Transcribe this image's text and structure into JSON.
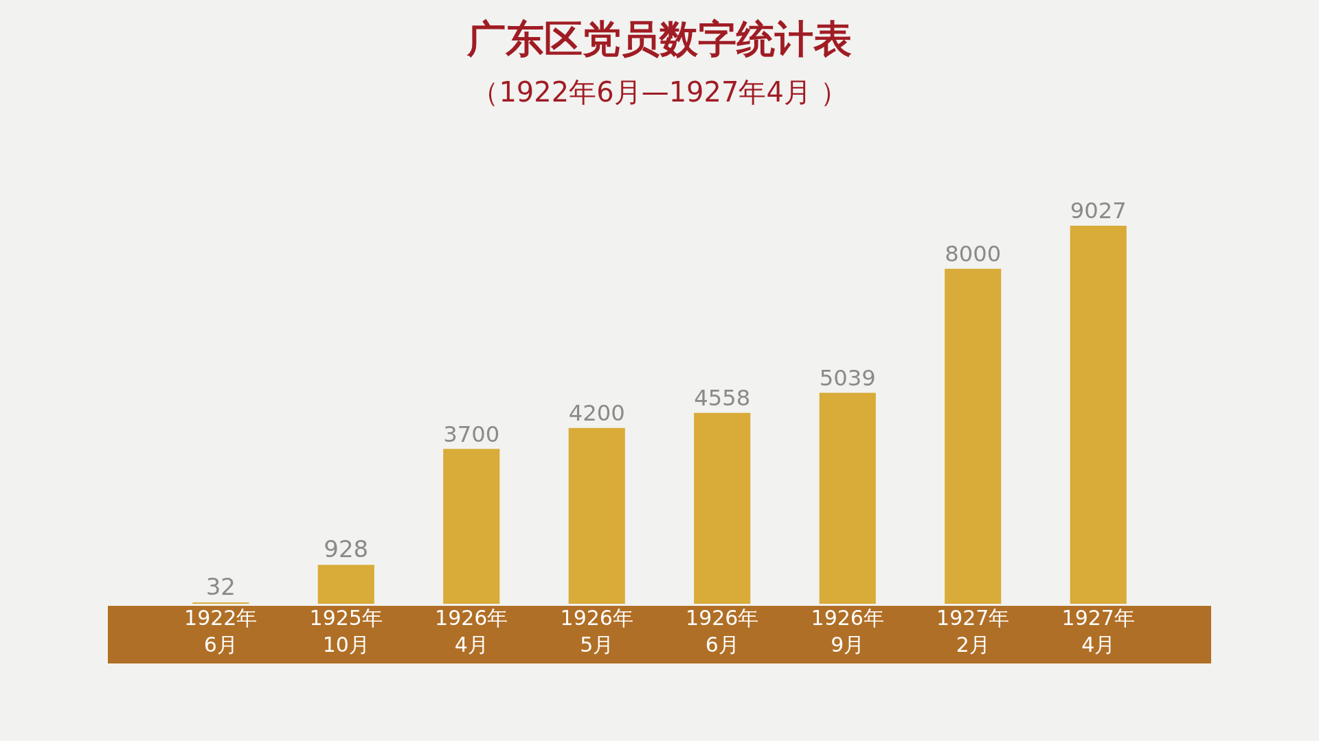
{
  "chart_data": {
    "type": "bar",
    "title": "广东区党员数字统计表",
    "subtitle": "（1922年6月—1927年4月 ）",
    "categories": [
      "1922年\n6月",
      "1925年\n10月",
      "1926年\n4月",
      "1926年\n5月",
      "1926年\n6月",
      "1926年\n9月",
      "1927年\n2月",
      "1927年\n4月"
    ],
    "values": [
      32,
      928,
      3700,
      4200,
      4558,
      5039,
      8000,
      9027
    ],
    "color": "#d9ab38",
    "data_labels": true,
    "grid": false,
    "legend": false
  }
}
